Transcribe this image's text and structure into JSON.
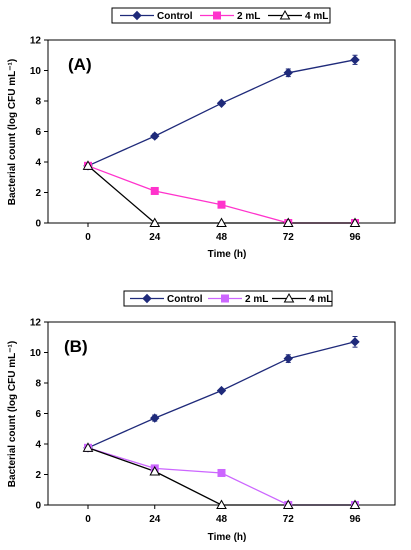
{
  "chart_data": [
    {
      "type": "line",
      "panel_label": "(A)",
      "xlabel": "Time (h)",
      "ylabel": "Bacterial count (log CFU mL⁻¹)",
      "x": [
        "0",
        "24",
        "48",
        "72",
        "96"
      ],
      "ylim": [
        0,
        12
      ],
      "yticks": [
        "0",
        "2",
        "4",
        "6",
        "8",
        "10",
        "12"
      ],
      "grid": false,
      "legend": "top",
      "series": [
        {
          "name": "Control",
          "values": [
            3.75,
            5.7,
            7.85,
            9.85,
            10.7
          ],
          "errors": [
            0.1,
            0.15,
            0.05,
            0.25,
            0.3
          ],
          "color": "#1f2a7a",
          "marker": "diamond-filled"
        },
        {
          "name": "2 mL",
          "values": [
            3.75,
            2.1,
            1.2,
            0.0,
            0.0
          ],
          "errors": [
            0.05,
            0.05,
            0.05,
            0.0,
            0.0
          ],
          "color": "#ff33cc",
          "marker": "square-filled"
        },
        {
          "name": "4 mL",
          "values": [
            3.75,
            0.0,
            0.0,
            0.0,
            0.0
          ],
          "errors": [
            0.05,
            0.0,
            0.0,
            0.0,
            0.0
          ],
          "color": "#000000",
          "marker": "triangle-open"
        }
      ]
    },
    {
      "type": "line",
      "panel_label": "(B)",
      "xlabel": "Time (h)",
      "ylabel": "Bacterial count (log CFU mL⁻¹)",
      "x": [
        "0",
        "24",
        "48",
        "72",
        "96"
      ],
      "ylim": [
        0,
        12
      ],
      "yticks": [
        "0",
        "2",
        "4",
        "6",
        "8",
        "10",
        "12"
      ],
      "grid": false,
      "legend": "top",
      "series": [
        {
          "name": "Control",
          "values": [
            3.75,
            5.7,
            7.5,
            9.6,
            10.7
          ],
          "errors": [
            0.1,
            0.2,
            0.05,
            0.25,
            0.35
          ],
          "color": "#1f2a7a",
          "marker": "diamond-filled"
        },
        {
          "name": "2 mL",
          "values": [
            3.75,
            2.4,
            2.1,
            0.0,
            0.0
          ],
          "errors": [
            0.15,
            0.15,
            0.1,
            0.0,
            0.0
          ],
          "color": "#cc66ff",
          "marker": "square-filled"
        },
        {
          "name": "4 mL",
          "values": [
            3.75,
            2.2,
            0.0,
            0.0,
            0.0
          ],
          "errors": [
            0.05,
            0.1,
            0.0,
            0.0,
            0.0
          ],
          "color": "#000000",
          "marker": "triangle-open"
        }
      ]
    }
  ]
}
